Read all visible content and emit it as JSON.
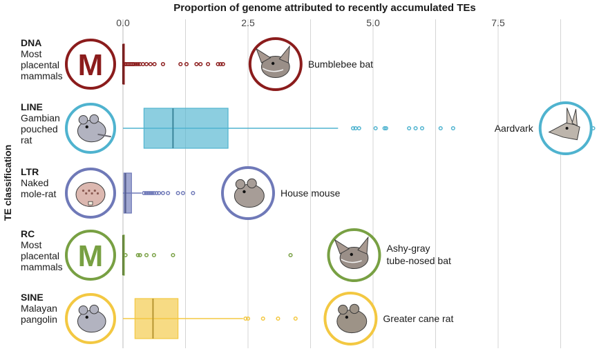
{
  "chart_data": {
    "type": "boxplot",
    "title": "Proportion of genome attributed to recently accumulated TEs",
    "ylabel": "TE classification",
    "xlim": [
      0,
      9.5
    ],
    "xticks": [
      "0.0",
      "2.5",
      "5.0",
      "7.5"
    ],
    "xtick_values": [
      0,
      2.5,
      5,
      7.5
    ],
    "grid": true,
    "categories": [
      {
        "code": "DNA",
        "description": [
          "Most",
          "placental",
          "mammals"
        ],
        "color": "#8b1c1c",
        "left_icon": {
          "kind": "letter",
          "letter": "M"
        },
        "box": {
          "q1": 0.0,
          "median": 0.0,
          "q3": 0.02,
          "whisker_low": 0.0,
          "whisker_high": 0.05
        },
        "outliers": [
          0.04,
          0.07,
          0.1,
          0.13,
          0.16,
          0.19,
          0.22,
          0.26,
          0.3,
          0.34,
          0.4,
          0.47,
          0.55,
          0.63,
          0.8,
          1.15,
          1.27,
          1.47,
          1.55,
          1.7,
          1.9,
          1.95,
          2.0
        ],
        "right_annotation": {
          "label": "Bumblebee bat",
          "icon": "bumblebee-bat",
          "x": 3.05
        }
      },
      {
        "code": "LINE",
        "description": [
          "Gambian",
          "pouched",
          "rat"
        ],
        "color": "#4fb3cf",
        "left_icon": {
          "kind": "animal",
          "icon": "gambian-pouched-rat"
        },
        "box": {
          "q1": 0.42,
          "median": 1.0,
          "q3": 2.1,
          "whisker_low": 0.0,
          "whisker_high": 4.3
        },
        "outliers": [
          4.6,
          4.65,
          4.72,
          5.05,
          5.23,
          5.26,
          5.72,
          5.85,
          5.98,
          6.35,
          6.6,
          9.4
        ],
        "right_annotation": {
          "label": "Aardvark",
          "icon": "aardvark",
          "x": 8.85
        }
      },
      {
        "code": "LTR",
        "description": [
          "Naked",
          "mole-rat"
        ],
        "color": "#6f79b8",
        "left_icon": {
          "kind": "animal",
          "icon": "naked-mole-rat"
        },
        "box": {
          "q1": 0.02,
          "median": 0.05,
          "q3": 0.17,
          "whisker_low": 0.0,
          "whisker_high": 0.37
        },
        "outliers": [
          0.42,
          0.46,
          0.5,
          0.54,
          0.58,
          0.62,
          0.67,
          0.72,
          0.8,
          0.9,
          1.1,
          1.2,
          1.4
        ],
        "right_annotation": {
          "label": "House mouse",
          "icon": "house-mouse",
          "x": 2.5
        }
      },
      {
        "code": "RC",
        "description": [
          "Most",
          "placental",
          "mammals"
        ],
        "color": "#78a043",
        "left_icon": {
          "kind": "letter",
          "letter": "M"
        },
        "box": {
          "q1": 0.0,
          "median": 0.0,
          "q3": 0.0,
          "whisker_low": 0.0,
          "whisker_high": 0.02
        },
        "outliers": [
          0.05,
          0.3,
          0.34,
          0.47,
          0.62,
          1.0,
          3.35
        ],
        "right_annotation": {
          "label": "Ashy-gray tube-nosed bat",
          "label_lines": [
            "Ashy-gray",
            "tube-nosed bat"
          ],
          "icon": "ashy-gray-tube-nosed-bat",
          "x": 4.62
        }
      },
      {
        "code": "SINE",
        "description": [
          "Malayan",
          "pangolin"
        ],
        "color": "#f3c842",
        "left_icon": {
          "kind": "animal",
          "icon": "malayan-pangolin"
        },
        "box": {
          "q1": 0.24,
          "median": 0.6,
          "q3": 1.1,
          "whisker_low": 0.0,
          "whisker_high": 2.4
        },
        "outliers": [
          2.45,
          2.5,
          2.8,
          3.1,
          3.45
        ],
        "right_annotation": {
          "label": "Greater cane rat",
          "icon": "greater-cane-rat",
          "x": 4.55
        }
      }
    ]
  }
}
